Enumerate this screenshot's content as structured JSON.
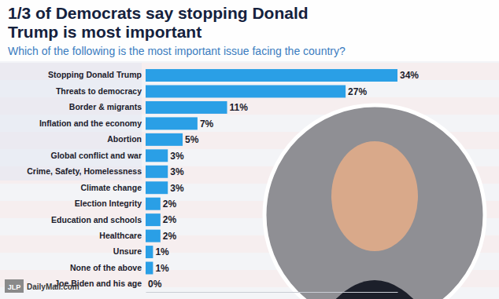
{
  "chart_data": {
    "type": "bar",
    "orientation": "horizontal",
    "title": "1/3 of Democrats say stopping Donald Trump is most important",
    "subtitle": "Which of the following is the most important issue facing the country?",
    "categories": [
      "Stopping Donald Trump",
      "Threats to democracy",
      "Border & migrants",
      "Inflation and the economy",
      "Abortion",
      "Global conflict and war",
      "Crime, Safety, Homelessness",
      "Climate change",
      "Election Integrity",
      "Education and schools",
      "Healthcare",
      "Unsure",
      "None of the above",
      "Joe Biden and his age"
    ],
    "values": [
      34,
      27,
      11,
      7,
      5,
      3,
      3,
      3,
      2,
      2,
      2,
      1,
      1,
      0
    ],
    "value_labels": [
      "34%",
      "27%",
      "11%",
      "7%",
      "5%",
      "3%",
      "3%",
      "3%",
      "2%",
      "2%",
      "2%",
      "1%",
      "1%",
      "0%"
    ],
    "color": "#2a9fe6",
    "xlim": [
      0,
      34
    ],
    "data_labels": true,
    "tick_labels": "y",
    "grid": false,
    "annotations": [
      "JLP",
      "DailyMail.com"
    ]
  }
}
